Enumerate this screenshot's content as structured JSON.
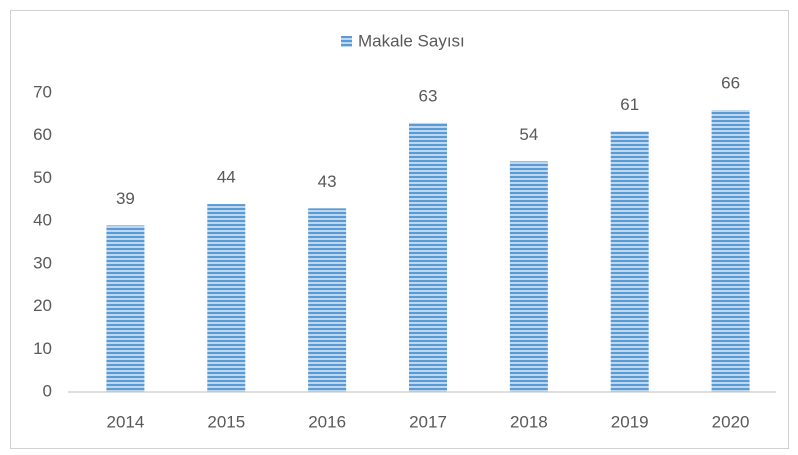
{
  "chart_data": {
    "type": "bar",
    "legend": "top",
    "categories": [
      "2014",
      "2015",
      "2016",
      "2017",
      "2018",
      "2019",
      "2020"
    ],
    "series": [
      {
        "name": "Makale Sayısı",
        "color": "#5b9bd5",
        "values": [
          39,
          44,
          43,
          63,
          54,
          61,
          66
        ]
      }
    ],
    "ylim": [
      0,
      70
    ],
    "yticks": [
      0,
      10,
      20,
      30,
      40,
      50,
      60,
      70
    ],
    "grid": false
  }
}
